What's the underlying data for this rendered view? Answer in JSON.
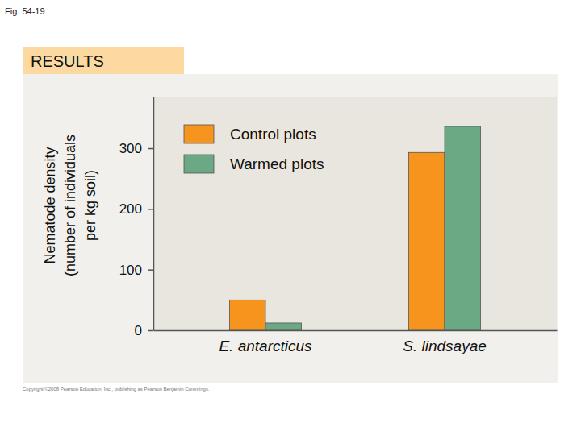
{
  "chart_data": {
    "type": "bar",
    "title": "RESULTS",
    "annotations": [
      "Fig. 54-19",
      "Copyright ©2008 Pearson Education, Inc., publishing as Pearson Benjamin Cummings."
    ],
    "y_label": [
      "Nematode density",
      "(number of individuals",
      "per kg soil)"
    ],
    "categories": [
      "E. antarcticus",
      "S. lindsayae"
    ],
    "series": [
      {
        "name": "Control plots",
        "color": "#f7941d",
        "values": [
          50,
          293
        ]
      },
      {
        "name": "Warmed plots",
        "color": "#6aa984",
        "values": [
          12,
          336
        ]
      }
    ],
    "ylim": [
      0,
      385
    ],
    "yticks": [
      0,
      100,
      200,
      300
    ],
    "grid": false,
    "legend": "upper left"
  }
}
